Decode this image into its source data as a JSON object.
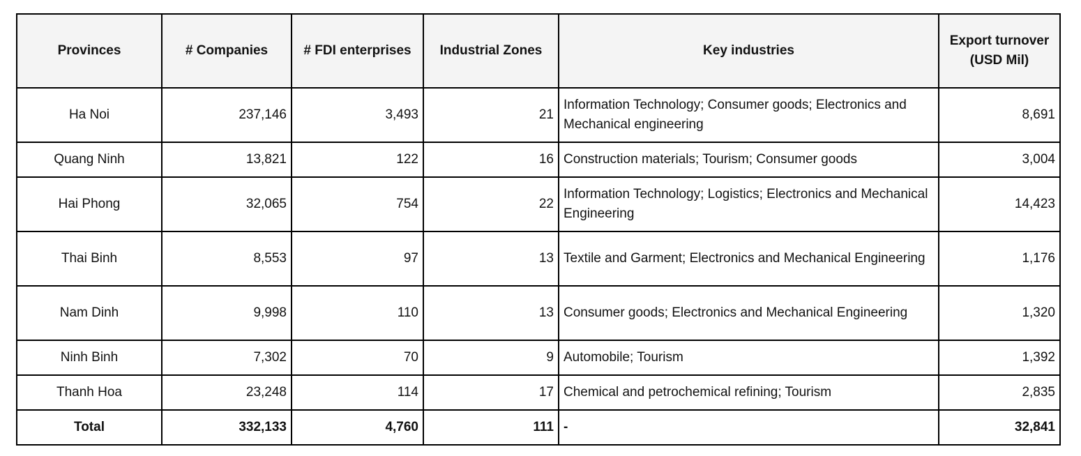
{
  "table": {
    "headers": {
      "provinces": "Provinces",
      "companies": "# Companies",
      "fdi": "# FDI enterprises",
      "zones": "Industrial Zones",
      "industries": "Key industries",
      "export": "Export turnover (USD Mil)"
    },
    "rows": [
      {
        "province": "Ha Noi",
        "companies": "237,146",
        "fdi": "3,493",
        "zones": "21",
        "industries": "Information Technology; Consumer goods;  Electronics and Mechanical engineering",
        "export": "8,691"
      },
      {
        "province": "Quang Ninh",
        "companies": "13,821",
        "fdi": "122",
        "zones": "16",
        "industries": "Construction materials; Tourism; Consumer goods",
        "export": "3,004"
      },
      {
        "province": "Hai Phong",
        "companies": "32,065",
        "fdi": "754",
        "zones": "22",
        "industries": "Information Technology; Logistics; Electronics and Mechanical Engineering",
        "export": "14,423"
      },
      {
        "province": "Thai Binh",
        "companies": "8,553",
        "fdi": "97",
        "zones": "13",
        "industries": "Textile and Garment; Electronics and Mechanical Engineering",
        "export": "1,176"
      },
      {
        "province": "Nam Dinh",
        "companies": "9,998",
        "fdi": "110",
        "zones": "13",
        "industries": "Consumer goods; Electronics and Mechanical Engineering",
        "export": "1,320"
      },
      {
        "province": "Ninh Binh",
        "companies": "7,302",
        "fdi": "70",
        "zones": "9",
        "industries": "Automobile; Tourism",
        "export": "1,392"
      },
      {
        "province": "Thanh Hoa",
        "companies": "23,248",
        "fdi": "114",
        "zones": "17",
        "industries": "Chemical and petrochemical refining; Tourism",
        "export": "2,835"
      }
    ],
    "total": {
      "province": "Total",
      "companies": "332,133",
      "fdi": "4,760",
      "zones": "111",
      "industries": "-",
      "export": "32,841"
    }
  }
}
